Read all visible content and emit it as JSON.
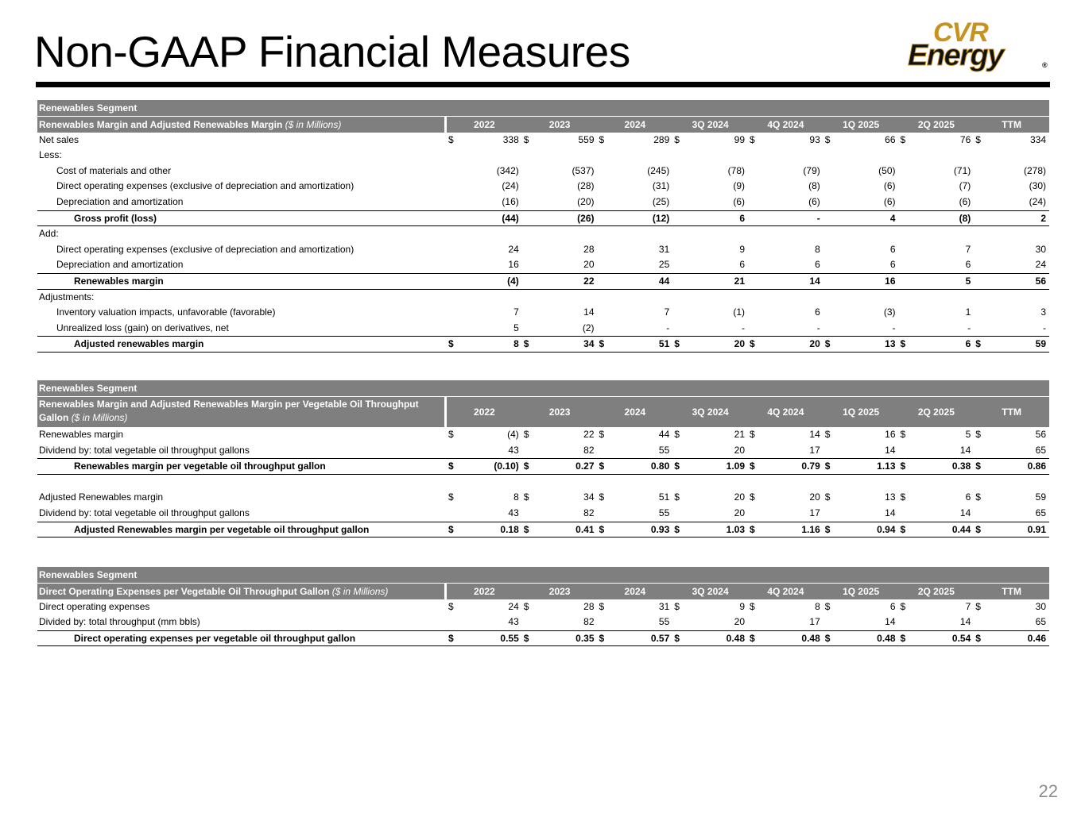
{
  "header": {
    "title": "Non-GAAP Financial Measures",
    "logo": {
      "top": "CVR",
      "bottom": "Energy",
      "mark": "®"
    }
  },
  "tables": [
    {
      "section": "Renewables Segment",
      "title": "Renewables Margin and Adjusted Renewables Margin",
      "unit": "($ in Millions)",
      "columns": [
        "2022",
        "2023",
        "2024",
        "3Q 2024",
        "4Q 2024",
        "1Q 2025",
        "2Q 2025",
        "TTM"
      ],
      "rows": [
        {
          "label": "Net sales",
          "currency": "$",
          "values": [
            "338",
            "559",
            "289",
            "99",
            "93",
            "66",
            "76",
            "334"
          ]
        },
        {
          "label": "Less:"
        },
        {
          "label": "Cost of materials and other",
          "values": [
            "(342)",
            "(537)",
            "(245)",
            "(78)",
            "(79)",
            "(50)",
            "(71)",
            "(278)"
          ]
        },
        {
          "label": "Direct operating expenses (exclusive of depreciation and amortization)",
          "values": [
            "(24)",
            "(28)",
            "(31)",
            "(9)",
            "(8)",
            "(6)",
            "(7)",
            "(30)"
          ]
        },
        {
          "label": "Depreciation and amortization",
          "values": [
            "(16)",
            "(20)",
            "(25)",
            "(6)",
            "(6)",
            "(6)",
            "(6)",
            "(24)"
          ]
        },
        {
          "label": "Gross profit (loss)",
          "values": [
            "(44)",
            "(26)",
            "(12)",
            "6",
            "-",
            "4",
            "(8)",
            "2"
          ]
        },
        {
          "label": "Add:"
        },
        {
          "label": "Direct operating expenses (exclusive of depreciation and amortization)",
          "values": [
            "24",
            "28",
            "31",
            "9",
            "8",
            "6",
            "7",
            "30"
          ]
        },
        {
          "label": "Depreciation and amortization",
          "values": [
            "16",
            "20",
            "25",
            "6",
            "6",
            "6",
            "6",
            "24"
          ]
        },
        {
          "label": "Renewables margin",
          "values": [
            "(4)",
            "22",
            "44",
            "21",
            "14",
            "16",
            "5",
            "56"
          ]
        },
        {
          "label": "Adjustments:"
        },
        {
          "label": "Inventory valuation impacts, unfavorable (favorable)",
          "values": [
            "7",
            "14",
            "7",
            "(1)",
            "6",
            "(3)",
            "1",
            "3"
          ]
        },
        {
          "label": "Unrealized loss (gain) on derivatives, net",
          "values": [
            "5",
            "(2)",
            "-",
            "-",
            "-",
            "-",
            "-",
            "-"
          ]
        },
        {
          "label": "Adjusted renewables margin",
          "currency": "$",
          "values": [
            "8",
            "34",
            "51",
            "20",
            "20",
            "13",
            "6",
            "59"
          ]
        }
      ]
    },
    {
      "section": "Renewables Segment",
      "title": "Renewables Margin and Adjusted Renewables Margin per Vegetable Oil Throughput Gallon",
      "unit": "($ in Millions)",
      "columns": [
        "2022",
        "2023",
        "2024",
        "3Q 2024",
        "4Q 2024",
        "1Q 2025",
        "2Q 2025",
        "TTM"
      ],
      "rows": [
        {
          "label": "Renewables margin",
          "currency": "$",
          "values": [
            "(4)",
            "22",
            "44",
            "21",
            "14",
            "16",
            "5",
            "56"
          ]
        },
        {
          "label": "Dividend by: total vegetable oil throughput gallons",
          "values": [
            "43",
            "82",
            "55",
            "20",
            "17",
            "14",
            "14",
            "65"
          ]
        },
        {
          "label": "Renewables margin per vegetable oil throughput gallon",
          "currency": "$",
          "values": [
            "(0.10)",
            "0.27",
            "0.80",
            "1.09",
            "0.79",
            "1.13",
            "0.38",
            "0.86"
          ]
        },
        {
          "label": "Adjusted Renewables margin",
          "currency": "$",
          "values": [
            "8",
            "34",
            "51",
            "20",
            "20",
            "13",
            "6",
            "59"
          ]
        },
        {
          "label": "Dividend by: total vegetable oil throughput gallons",
          "values": [
            "43",
            "82",
            "55",
            "20",
            "17",
            "14",
            "14",
            "65"
          ]
        },
        {
          "label": "Adjusted Renewables margin per vegetable oil throughput gallon",
          "currency": "$",
          "values": [
            "0.18",
            "0.41",
            "0.93",
            "1.03",
            "1.16",
            "0.94",
            "0.44",
            "0.91"
          ]
        }
      ]
    },
    {
      "section": "Renewables Segment",
      "title": "Direct Operating Expenses per Vegetable Oil Throughput Gallon",
      "unit": "($ in Millions)",
      "columns": [
        "2022",
        "2023",
        "2024",
        "3Q 2024",
        "4Q 2024",
        "1Q 2025",
        "2Q 2025",
        "TTM"
      ],
      "rows": [
        {
          "label": "Direct operating expenses",
          "currency": "$",
          "values": [
            "24",
            "28",
            "31",
            "9",
            "8",
            "6",
            "7",
            "30"
          ]
        },
        {
          "label": "Divided by: total throughput (mm bbls)",
          "values": [
            "43",
            "82",
            "55",
            "20",
            "17",
            "14",
            "14",
            "65"
          ]
        },
        {
          "label": "Direct operating expenses per vegetable oil throughput gallon",
          "currency": "$",
          "values": [
            "0.55",
            "0.35",
            "0.57",
            "0.48",
            "0.48",
            "0.48",
            "0.54",
            "0.46"
          ]
        }
      ]
    }
  ],
  "page_number": "22"
}
